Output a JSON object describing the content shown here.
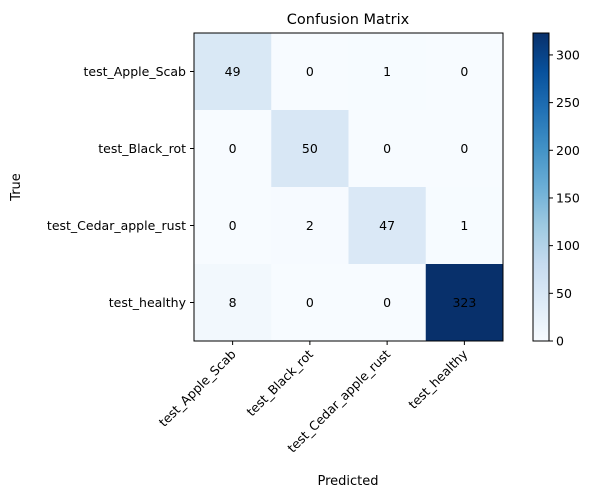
{
  "chart_data": {
    "type": "heatmap",
    "title": "Confusion Matrix",
    "xlabel": "Predicted",
    "ylabel": "True",
    "x_categories": [
      "test_Apple_Scab",
      "test_Black_rot",
      "test_Cedar_apple_rust",
      "test_healthy"
    ],
    "y_categories": [
      "test_Apple_Scab",
      "test_Black_rot",
      "test_Cedar_apple_rust",
      "test_healthy"
    ],
    "values": [
      [
        49,
        0,
        1,
        0
      ],
      [
        0,
        50,
        0,
        0
      ],
      [
        0,
        2,
        47,
        1
      ],
      [
        8,
        0,
        0,
        323
      ]
    ],
    "colormap": "Blues",
    "colorbar": {
      "range": [
        0,
        323
      ],
      "ticks": [
        "0",
        "50",
        "100",
        "150",
        "200",
        "250",
        "300"
      ],
      "tick_values": [
        0,
        50,
        100,
        150,
        200,
        250,
        300
      ]
    },
    "colors": {
      "low": "#f7fbff",
      "high": "#08306b"
    }
  }
}
